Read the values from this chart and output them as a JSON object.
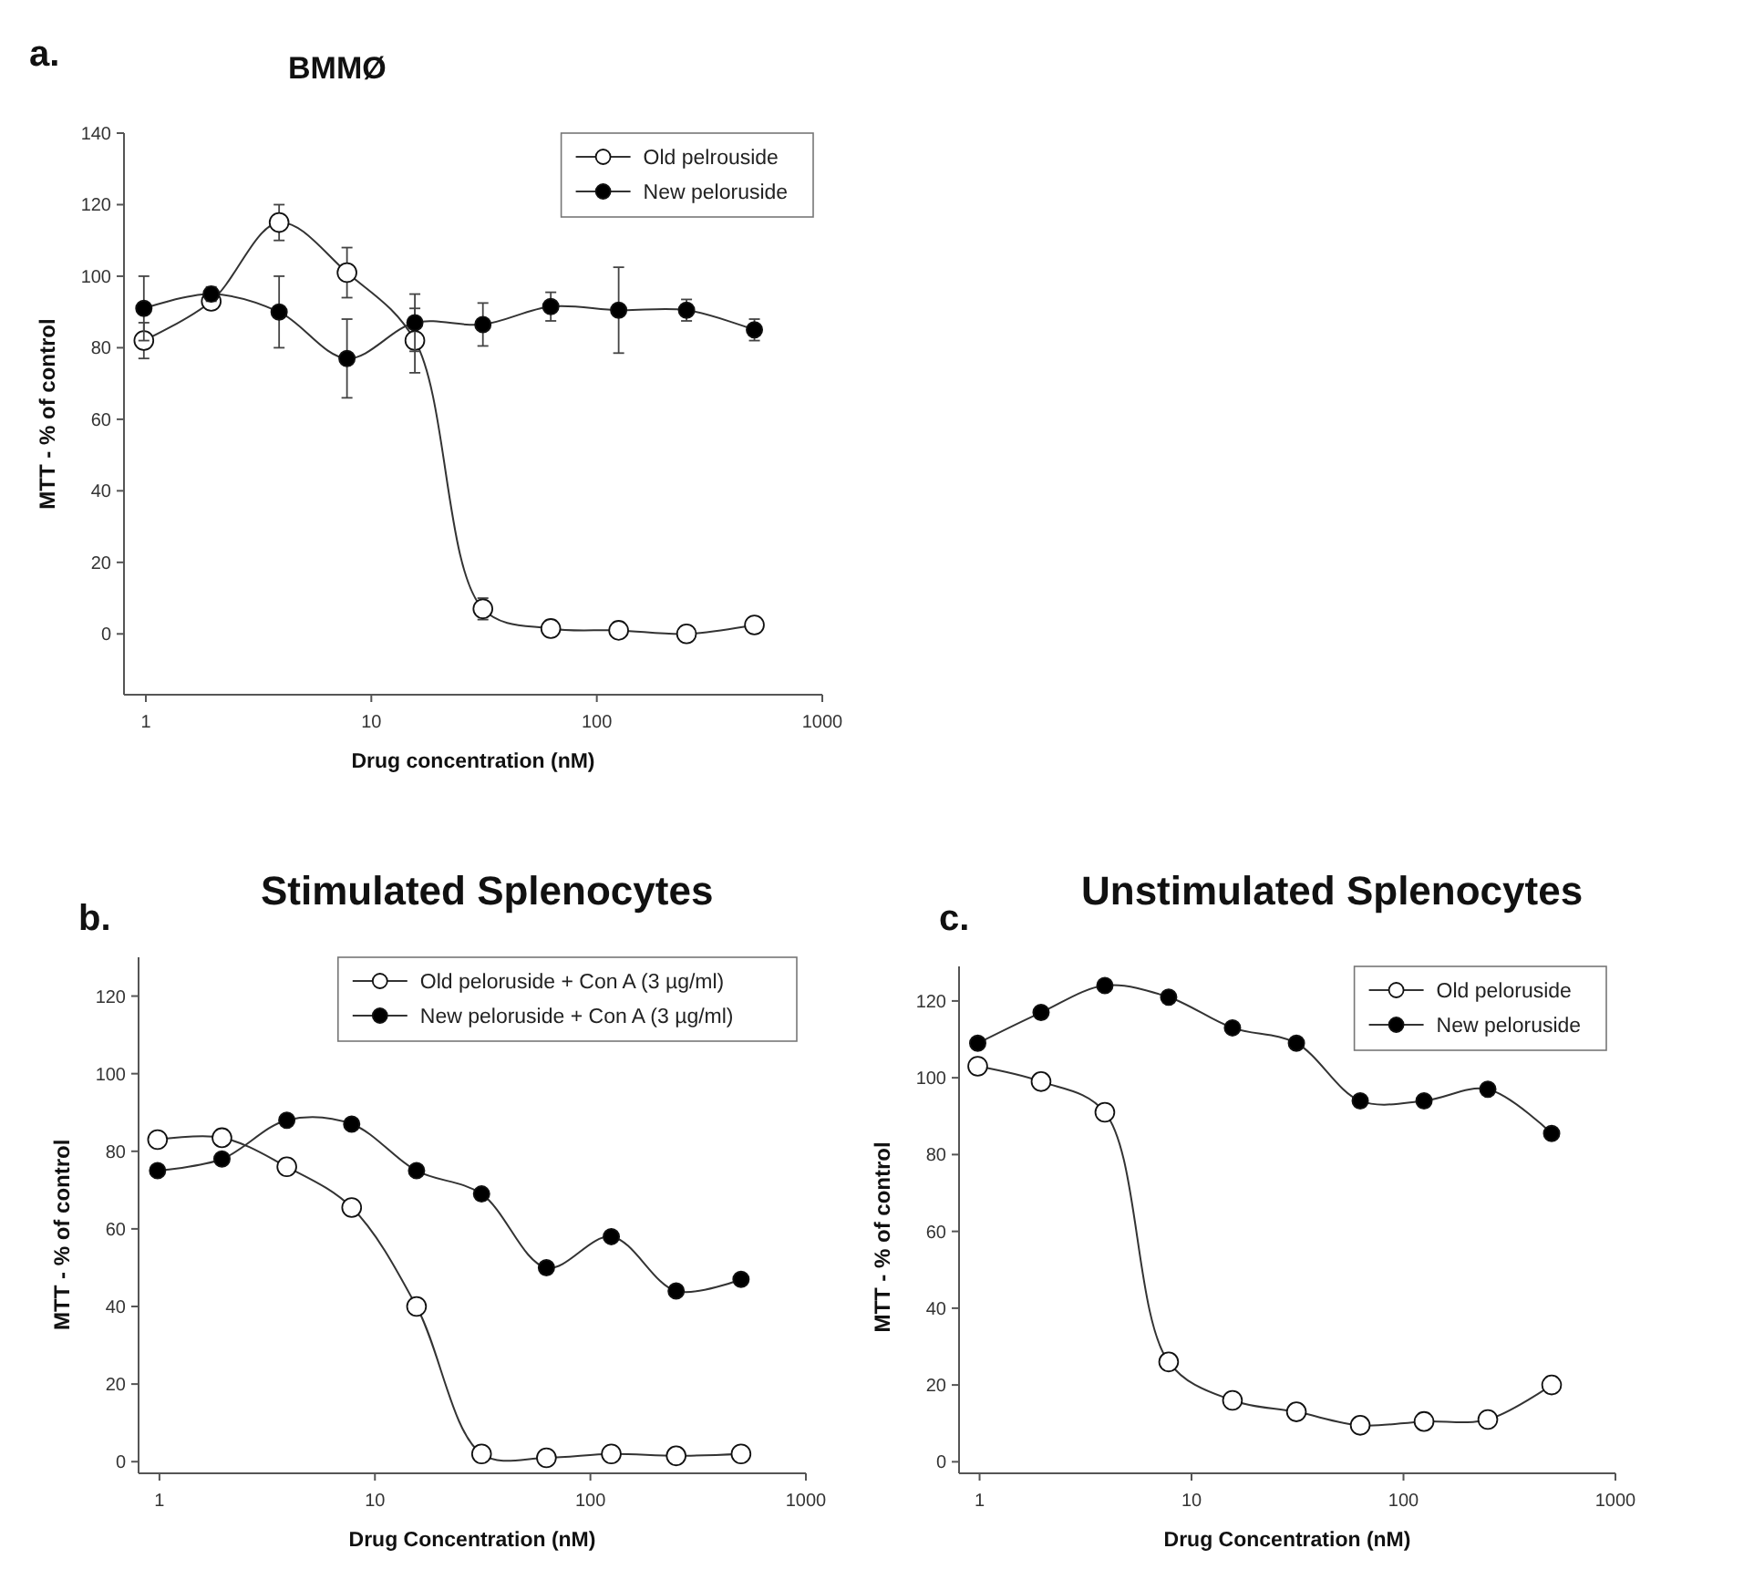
{
  "chart_data": [
    {
      "type": "line",
      "title": "BMMØ",
      "annotations": [
        "a."
      ],
      "xlabel": "Drug concentration (nM)",
      "ylabel": "MTT - % of control",
      "log": "x",
      "marker": "circle",
      "legend": "top right",
      "x": [
        0.98,
        1.95,
        3.9,
        7.8,
        15.6,
        31.25,
        62.5,
        125,
        250,
        500
      ],
      "xlim": [
        0.8,
        1000
      ],
      "xticks": [
        1,
        10,
        100,
        1000
      ],
      "ylim": [
        -17,
        140
      ],
      "yticks": [
        0,
        20,
        40,
        60,
        80,
        100,
        120,
        140
      ],
      "series": [
        {
          "name": "Old pelrouside",
          "color": "#ffffff",
          "values": [
            82,
            93,
            115,
            101,
            82,
            7,
            1.5,
            1,
            0,
            2.5
          ],
          "errors": [
            5,
            2,
            5,
            7,
            9,
            3,
            null,
            null,
            null,
            2
          ]
        },
        {
          "name": "New peloruside",
          "color": "#000000",
          "values": [
            91,
            95,
            90,
            77,
            87,
            86.5,
            91.5,
            90.5,
            90.5,
            85
          ],
          "errors": [
            9,
            2,
            10,
            11,
            8,
            6,
            4,
            12,
            3,
            3
          ]
        }
      ]
    },
    {
      "type": "line",
      "title": "Stimulated Splenocytes",
      "annotations": [
        "b."
      ],
      "xlabel": "Drug Concentration (nM)",
      "ylabel": "MTT - % of control",
      "log": "x",
      "marker": "circle",
      "legend": "top right",
      "x": [
        0.98,
        1.95,
        3.9,
        7.8,
        15.6,
        31.25,
        62.5,
        125,
        250,
        500
      ],
      "xlim": [
        0.8,
        1000
      ],
      "xticks": [
        1,
        10,
        100,
        1000
      ],
      "ylim": [
        -3,
        130
      ],
      "yticks": [
        0,
        20,
        40,
        60,
        80,
        100,
        120
      ],
      "series": [
        {
          "name": "Old peloruside + Con A (3 µg/ml)",
          "color": "#ffffff",
          "values": [
            83,
            83.5,
            76,
            65.5,
            40,
            2,
            1,
            2,
            1.5,
            2
          ]
        },
        {
          "name": "New peloruside + Con A (3 µg/ml)",
          "color": "#000000",
          "values": [
            75,
            78,
            88,
            87,
            75,
            69,
            50,
            58,
            44,
            47
          ]
        }
      ]
    },
    {
      "type": "line",
      "title": "Unstimulated Splenocytes",
      "annotations": [
        "c."
      ],
      "xlabel": "Drug Concentration (nM)",
      "ylabel": "MTT - % of control",
      "log": "x",
      "marker": "circle",
      "legend": "top right",
      "x": [
        0.98,
        1.95,
        3.9,
        7.8,
        15.6,
        31.25,
        62.5,
        125,
        250,
        500
      ],
      "xlim": [
        0.8,
        1000
      ],
      "xticks": [
        1,
        10,
        100,
        1000
      ],
      "ylim": [
        -3,
        129
      ],
      "yticks": [
        0,
        20,
        40,
        60,
        80,
        100,
        120
      ],
      "series": [
        {
          "name": "Old peloruside",
          "color": "#ffffff",
          "values": [
            103,
            99,
            91,
            26,
            16,
            13,
            9.5,
            10.5,
            11,
            20
          ]
        },
        {
          "name": "New peloruside",
          "color": "#000000",
          "values": [
            109,
            117,
            124,
            121,
            113,
            109,
            94,
            94,
            97,
            85.5
          ]
        }
      ]
    }
  ]
}
